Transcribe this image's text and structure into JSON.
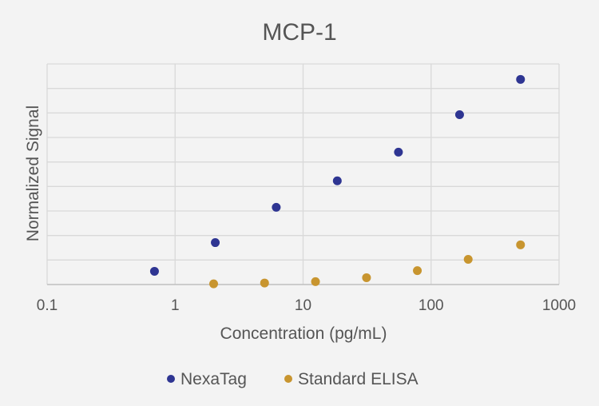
{
  "chart_data": {
    "type": "scatter",
    "title": "MCP-1",
    "xlabel": "Concentration (pg/mL)",
    "ylabel": "Normalized Signal",
    "x_scale": "log",
    "xlim": [
      0.1,
      1000
    ],
    "ylim": [
      0,
      1
    ],
    "x_ticks": [
      0.1,
      1,
      10,
      100,
      1000
    ],
    "x_tick_labels": [
      "0.1",
      "1",
      "10",
      "100",
      "1000"
    ],
    "y_gridlines": 9,
    "y_tick_labels_shown": false,
    "grid": true,
    "legend": "bottom",
    "series": [
      {
        "name": "NexaTag",
        "color": "#2e3592",
        "points": [
          {
            "x": 0.69,
            "y": 0.06
          },
          {
            "x": 2.06,
            "y": 0.19
          },
          {
            "x": 6.17,
            "y": 0.35
          },
          {
            "x": 18.5,
            "y": 0.47
          },
          {
            "x": 55.6,
            "y": 0.6
          },
          {
            "x": 167,
            "y": 0.77
          },
          {
            "x": 500,
            "y": 0.93
          }
        ]
      },
      {
        "name": "Standard ELISA",
        "color": "#c8952f",
        "points": [
          {
            "x": 2.0,
            "y": 0.003
          },
          {
            "x": 5.0,
            "y": 0.007
          },
          {
            "x": 12.5,
            "y": 0.013
          },
          {
            "x": 31.3,
            "y": 0.031
          },
          {
            "x": 78.1,
            "y": 0.063
          },
          {
            "x": 195,
            "y": 0.114
          },
          {
            "x": 500,
            "y": 0.18
          }
        ]
      }
    ]
  }
}
